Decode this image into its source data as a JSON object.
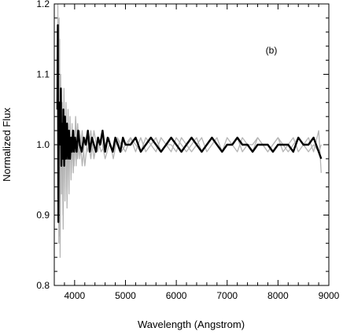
{
  "chart_data": {
    "type": "line",
    "title": "",
    "panel_label": "(b)",
    "xlabel": "Wavelength (Angstrom)",
    "ylabel": "Normalized Flux",
    "xlim": [
      3600,
      9000
    ],
    "ylim": [
      0.8,
      1.2
    ],
    "x_ticks": [
      4000,
      5000,
      6000,
      7000,
      8000,
      9000
    ],
    "x_tick_labels": [
      "4000",
      "5000",
      "6000",
      "7000",
      "8000",
      "9000"
    ],
    "y_ticks": [
      0.8,
      0.9,
      1.0,
      1.1,
      1.2
    ],
    "y_tick_labels": [
      "0.8",
      "0.9",
      "1.0",
      "1.1",
      "1.2"
    ],
    "grid": false,
    "legend": "none",
    "series": [
      {
        "color": "#b4b4b4",
        "x": [
          3670,
          3690,
          3705,
          3715,
          3730,
          3745,
          3760,
          3775,
          3790,
          3810,
          3830,
          3850,
          3870,
          3890,
          3910,
          3930,
          3950,
          3975,
          4000,
          4030,
          4060,
          4100,
          4150,
          4200,
          4260,
          4320,
          4380,
          4450,
          4520,
          4600,
          4680,
          4760,
          4840,
          4920,
          5000,
          5100,
          5200,
          5300,
          5400,
          5500,
          5600,
          5700,
          5800,
          5900,
          6000,
          6100,
          6200,
          6300,
          6400,
          6500,
          6600,
          6700,
          6800,
          6900,
          7000,
          7100,
          7200,
          7300,
          7400,
          7500,
          7600,
          7700,
          7800,
          7900,
          8000,
          8100,
          8200,
          8300,
          8400,
          8500,
          8600,
          8700,
          8800,
          8850
        ],
        "y": [
          1.2,
          0.86,
          1.15,
          0.84,
          1.02,
          0.97,
          1.03,
          0.88,
          1.07,
          0.92,
          1.06,
          0.91,
          1.05,
          0.93,
          1.04,
          0.95,
          1.03,
          0.96,
          1.02,
          0.97,
          1.03,
          0.98,
          1.02,
          0.97,
          1.01,
          0.98,
          1.02,
          0.99,
          1.01,
          0.98,
          1.0,
          0.99,
          1.01,
          0.99,
          1.0,
          1.01,
          0.99,
          1.01,
          0.99,
          1.0,
          1.01,
          0.99,
          1.0,
          1.0,
          0.99,
          1.01,
          1.0,
          0.99,
          1.0,
          1.01,
          0.99,
          1.0,
          1.01,
          0.99,
          1.0,
          1.0,
          1.01,
          0.99,
          1.0,
          1.0,
          1.01,
          1.0,
          0.99,
          1.0,
          1.01,
          0.99,
          1.0,
          1.01,
          0.99,
          1.0,
          1.01,
          0.99,
          1.02,
          0.96
        ]
      },
      {
        "color": "#b4b4b4",
        "x": [
          3675,
          3695,
          3710,
          3725,
          3740,
          3755,
          3770,
          3790,
          3810,
          3830,
          3850,
          3870,
          3890,
          3910,
          3935,
          3960,
          3990,
          4020,
          4060,
          4100,
          4150,
          4200,
          4260,
          4320,
          4380,
          4450,
          4520,
          4600,
          4680,
          4760,
          4840,
          4920,
          5000,
          5100,
          5200,
          5300,
          5400,
          5500,
          5600,
          5700,
          5800,
          5900,
          6000,
          6100,
          6200,
          6300,
          6400,
          6500,
          6600,
          6700,
          6800,
          6900,
          7000,
          7100,
          7200,
          7300,
          7400,
          7500,
          7600,
          7700,
          7800,
          7900,
          8000,
          8100,
          8200,
          8300,
          8400,
          8500,
          8600,
          8700,
          8800,
          8850
        ],
        "y": [
          0.95,
          1.18,
          0.87,
          1.1,
          0.93,
          1.06,
          0.9,
          1.08,
          0.94,
          1.05,
          0.92,
          1.04,
          0.95,
          1.03,
          0.96,
          1.02,
          0.97,
          1.04,
          0.98,
          1.02,
          0.97,
          1.01,
          0.99,
          1.02,
          0.98,
          1.01,
          0.99,
          1.0,
          1.01,
          0.98,
          1.01,
          1.0,
          0.99,
          1.01,
          1.0,
          0.99,
          1.01,
          1.0,
          0.99,
          1.01,
          1.0,
          0.99,
          1.01,
          1.0,
          0.99,
          1.0,
          1.01,
          0.99,
          1.0,
          1.01,
          1.0,
          0.99,
          1.01,
          1.0,
          0.99,
          1.01,
          1.0,
          0.99,
          1.01,
          1.0,
          0.99,
          1.0,
          1.01,
          1.0,
          0.99,
          1.0,
          1.01,
          1.0,
          0.99,
          1.0,
          0.99,
          1.0
        ]
      },
      {
        "color": "#000000",
        "x": [
          3660,
          3670,
          3680,
          3690,
          3700,
          3710,
          3720,
          3730,
          3740,
          3750,
          3765,
          3780,
          3795,
          3810,
          3830,
          3850,
          3870,
          3890,
          3910,
          3930,
          3950,
          3970,
          3990,
          4010,
          4040,
          4070,
          4100,
          4140,
          4180,
          4220,
          4260,
          4300,
          4340,
          4380,
          4420,
          4460,
          4500,
          4550,
          4600,
          4650,
          4700,
          4750,
          4800,
          4850,
          4900,
          4950,
          5000,
          5100,
          5200,
          5300,
          5400,
          5500,
          5600,
          5700,
          5800,
          5900,
          6000,
          6100,
          6200,
          6300,
          6400,
          6500,
          6600,
          6700,
          6800,
          6900,
          7000,
          7100,
          7200,
          7300,
          7400,
          7500,
          7600,
          7700,
          7800,
          7900,
          8000,
          8100,
          8200,
          8300,
          8400,
          8500,
          8600,
          8700,
          8800,
          8850
        ],
        "y": [
          1.05,
          1.17,
          0.89,
          1.06,
          1.02,
          1.06,
          1.0,
          1.08,
          0.97,
          1.03,
          0.98,
          1.05,
          0.97,
          1.04,
          0.98,
          1.03,
          0.98,
          1.02,
          0.98,
          1.01,
          0.99,
          1.02,
          0.99,
          1.01,
          0.99,
          1.02,
          1.0,
          0.99,
          1.01,
          1.0,
          1.02,
          0.99,
          1.01,
          1.0,
          0.99,
          1.01,
          1.0,
          1.02,
          0.99,
          1.01,
          1.0,
          0.99,
          1.01,
          1.0,
          0.99,
          1.01,
          1.0,
          1.0,
          1.01,
          0.99,
          1.0,
          1.01,
          1.0,
          0.99,
          1.0,
          1.01,
          1.0,
          0.99,
          1.0,
          1.01,
          1.0,
          0.99,
          1.0,
          1.01,
          1.0,
          0.99,
          1.0,
          1.0,
          1.01,
          1.0,
          1.0,
          0.99,
          1.0,
          1.0,
          1.0,
          0.99,
          1.0,
          1.0,
          1.0,
          0.99,
          1.01,
          1.0,
          1.0,
          1.01,
          0.99,
          0.98
        ]
      }
    ]
  }
}
